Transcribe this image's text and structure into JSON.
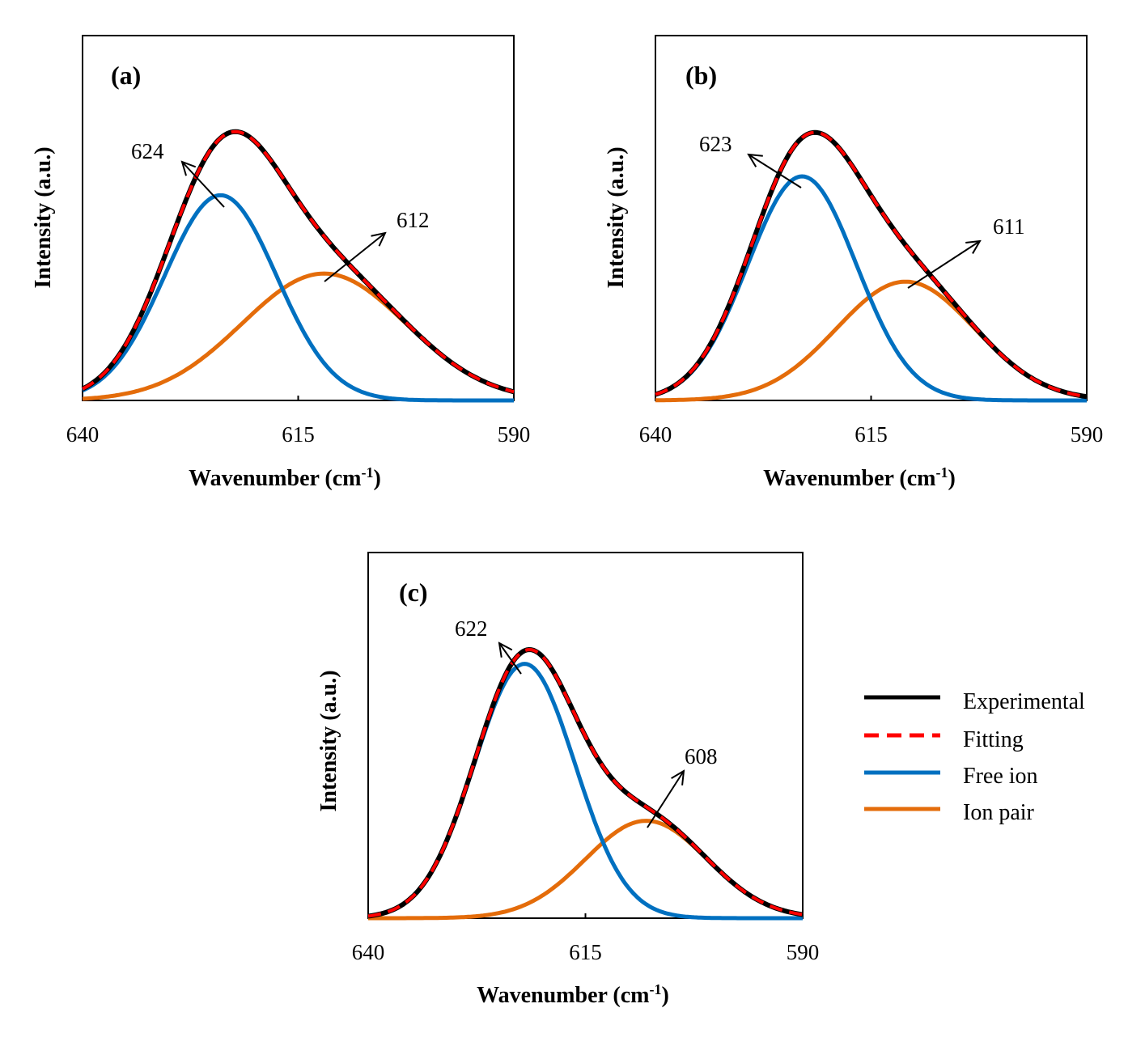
{
  "x_axis": {
    "label_main": "Wavenumber (cm",
    "label_sup": "-1",
    "label_close": ")",
    "ticks": [
      "640",
      "615",
      "590"
    ],
    "range": [
      640,
      590
    ]
  },
  "y_axis": {
    "label": "Intensity (a.u.)"
  },
  "colors": {
    "experimental": "#000000",
    "fitting": "#ff0000",
    "free_ion": "#0070c0",
    "ion_pair": "#e46c0a"
  },
  "legend": {
    "placement": "right of panel (c)",
    "items": [
      {
        "key": "experimental",
        "label": "Experimental",
        "style": "solid"
      },
      {
        "key": "fitting",
        "label": "Fitting",
        "style": "dashed"
      },
      {
        "key": "free_ion",
        "label": "Free ion",
        "style": "solid"
      },
      {
        "key": "ion_pair",
        "label": "Ion pair",
        "style": "solid"
      }
    ]
  },
  "chart_data": [
    {
      "type": "line",
      "panel_label": "(a)",
      "xlim": [
        640,
        590
      ],
      "ylim": [
        0,
        1
      ],
      "free_ion": {
        "center": 624,
        "height": 0.76,
        "width": 6.5
      },
      "ion_pair": {
        "center": 612,
        "height": 0.47,
        "width": 9.5
      },
      "annotations": [
        {
          "text": "624",
          "target": "free_ion"
        },
        {
          "text": "612",
          "target": "ion_pair"
        }
      ]
    },
    {
      "type": "line",
      "panel_label": "(b)",
      "xlim": [
        640,
        590
      ],
      "ylim": [
        0,
        1
      ],
      "free_ion": {
        "center": 623,
        "height": 0.83,
        "width": 6.3
      },
      "ion_pair": {
        "center": 611,
        "height": 0.44,
        "width": 8.0
      },
      "annotations": [
        {
          "text": "623",
          "target": "free_ion"
        },
        {
          "text": "611",
          "target": "ion_pair"
        }
      ]
    },
    {
      "type": "line",
      "panel_label": "(c)",
      "xlim": [
        640,
        590
      ],
      "ylim": [
        0,
        1
      ],
      "free_ion": {
        "center": 622,
        "height": 0.94,
        "width": 5.8
      },
      "ion_pair": {
        "center": 608,
        "height": 0.36,
        "width": 7.0
      },
      "annotations": [
        {
          "text": "622",
          "target": "free_ion"
        },
        {
          "text": "608",
          "target": "ion_pair"
        }
      ]
    }
  ]
}
